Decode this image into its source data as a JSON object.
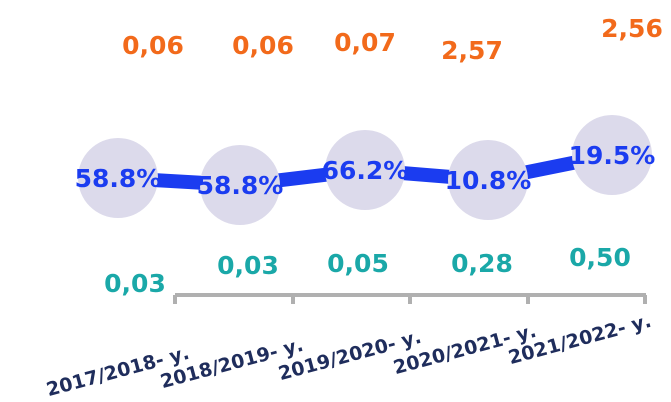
{
  "chart_data": {
    "type": "line",
    "categories": [
      "2017/2018- у.",
      "2018/2019- у.",
      "2019/2020- у.",
      "2020/2021- у.",
      "2021/2022- у."
    ],
    "series": [
      {
        "color": "#1b3cf0",
        "values": [
          58.8,
          58.8,
          66.2,
          10.8,
          19.5
        ],
        "value_labels": [
          "58.8%",
          "58.8%",
          "66.2%",
          "10.8%",
          "19.5%"
        ]
      },
      {
        "color": "#f26a1b",
        "values": [
          0.06,
          0.06,
          0.07,
          2.57,
          2.56
        ],
        "value_labels": [
          "0,06",
          "0,06",
          "0,07",
          "2,57",
          "2,56"
        ]
      },
      {
        "color": "#1aa8a8",
        "values": [
          0.03,
          0.03,
          0.05,
          0.28,
          0.5
        ],
        "value_labels": [
          "0,03",
          "0,03",
          "0,05",
          "0,28",
          "0,50"
        ]
      }
    ]
  }
}
